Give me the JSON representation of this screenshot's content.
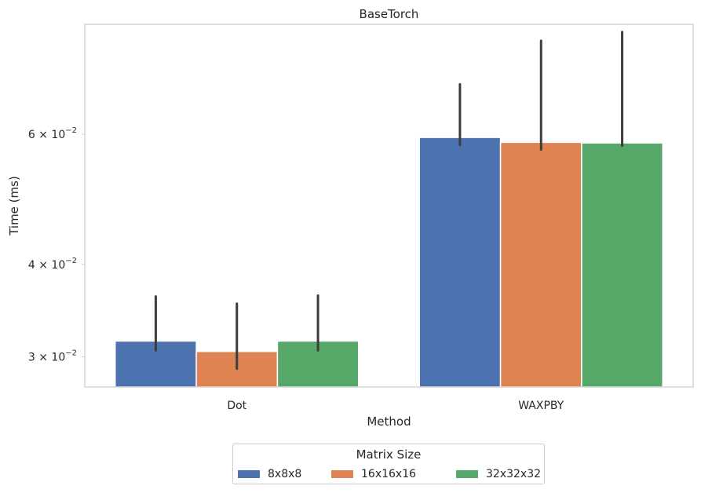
{
  "chart_data": {
    "type": "bar",
    "title": "BaseTorch",
    "xlabel": "Method",
    "ylabel": "Time (ms)",
    "y_scale": "log",
    "ylim": [
      0.0273,
      0.0845
    ],
    "categories": [
      "Dot",
      "WAXPBY"
    ],
    "series": [
      {
        "name": "8x8x8",
        "color": "#4c72b0",
        "values": [
          0.0315,
          0.0594
        ],
        "ci_low": [
          0.0306,
          0.058
        ],
        "ci_high": [
          0.0362,
          0.0701
        ]
      },
      {
        "name": "16x16x16",
        "color": "#dd8452",
        "values": [
          0.0305,
          0.0585
        ],
        "ci_low": [
          0.0289,
          0.0572
        ],
        "ci_high": [
          0.0354,
          0.0803
        ]
      },
      {
        "name": "32x32x32",
        "color": "#55a868",
        "values": [
          0.0315,
          0.0584
        ],
        "ci_low": [
          0.0306,
          0.0579
        ],
        "ci_high": [
          0.0363,
          0.0825
        ]
      }
    ],
    "yticks": [
      {
        "value": 0.03,
        "mantissa": "3",
        "exponent": "−2"
      },
      {
        "value": 0.04,
        "mantissa": "4",
        "exponent": "−2"
      },
      {
        "value": 0.06,
        "mantissa": "6",
        "exponent": "−2"
      }
    ],
    "grid": false,
    "legend_title": "Matrix Size",
    "legend_position": "bottom-center"
  }
}
